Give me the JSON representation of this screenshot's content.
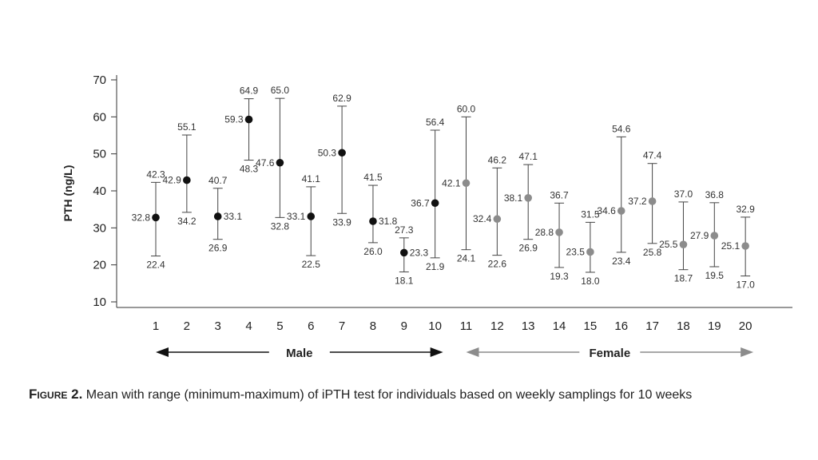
{
  "chart_data": {
    "type": "scatter",
    "subtype": "error-bar",
    "ylabel": "PTH (ng/L)",
    "xlabel": "",
    "ylim": [
      10,
      70
    ],
    "yticks": [
      10,
      20,
      30,
      40,
      50,
      60,
      70
    ],
    "x": [
      1,
      2,
      3,
      4,
      5,
      6,
      7,
      8,
      9,
      10,
      11,
      12,
      13,
      14,
      15,
      16,
      17,
      18,
      19,
      20
    ],
    "mean": [
      32.8,
      42.9,
      33.1,
      59.3,
      47.6,
      33.1,
      50.3,
      31.8,
      23.3,
      36.7,
      42.1,
      32.4,
      38.1,
      28.8,
      23.5,
      34.6,
      37.2,
      25.5,
      27.9,
      25.1
    ],
    "max": [
      42.3,
      55.1,
      40.7,
      64.9,
      65.0,
      41.1,
      62.9,
      41.5,
      27.3,
      56.4,
      60.0,
      46.2,
      47.1,
      36.7,
      31.5,
      54.6,
      47.4,
      37.0,
      36.8,
      32.9
    ],
    "min": [
      22.4,
      34.2,
      26.9,
      48.3,
      32.8,
      22.5,
      33.9,
      26.0,
      18.1,
      21.9,
      24.1,
      22.6,
      26.9,
      19.3,
      18.0,
      23.4,
      25.8,
      18.7,
      19.5,
      17.0
    ],
    "groups": [
      {
        "name": "Male",
        "from": 1,
        "to": 10,
        "color": "#111111"
      },
      {
        "name": "Female",
        "from": 11,
        "to": 20,
        "color": "#8c8c8c"
      }
    ],
    "grid": false,
    "legend": "none"
  },
  "caption": {
    "figure_label": "Figure 2.",
    "text": " Mean with range (minimum-maximum) of iPTH test for individuals based on weekly samplings for 10 weeks"
  }
}
